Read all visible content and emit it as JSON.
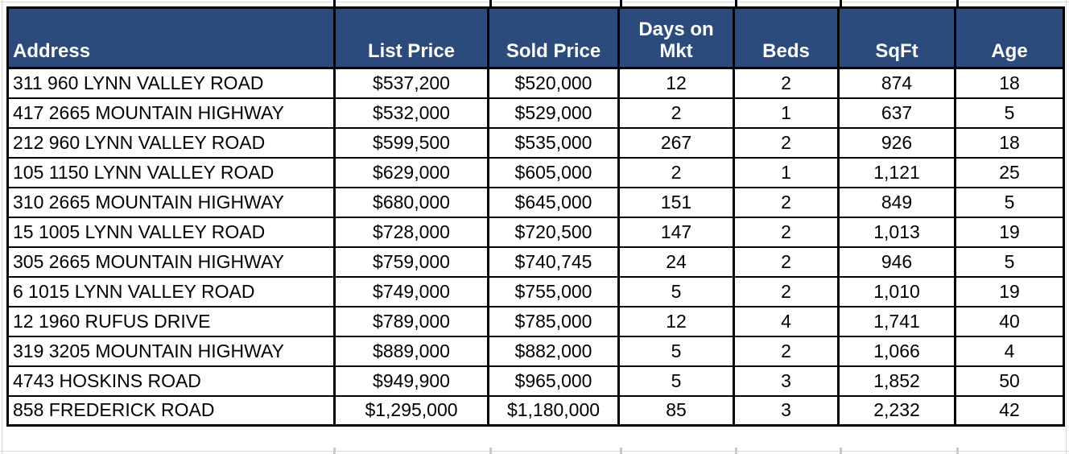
{
  "table": {
    "columns": [
      {
        "label": "Address",
        "align": "left"
      },
      {
        "label": "List Price",
        "align": "center"
      },
      {
        "label": "Sold Price",
        "align": "center"
      },
      {
        "label": "Days on Mkt",
        "align": "center"
      },
      {
        "label": "Beds",
        "align": "center"
      },
      {
        "label": "SqFt",
        "align": "center"
      },
      {
        "label": "Age",
        "align": "center"
      }
    ],
    "rows": [
      [
        "311 960 LYNN VALLEY ROAD",
        "$537,200",
        "$520,000",
        "12",
        "2",
        "874",
        "18"
      ],
      [
        "417 2665 MOUNTAIN HIGHWAY",
        "$532,000",
        "$529,000",
        "2",
        "1",
        "637",
        "5"
      ],
      [
        "212 960 LYNN VALLEY ROAD",
        "$599,500",
        "$535,000",
        "267",
        "2",
        "926",
        "18"
      ],
      [
        "105 1150 LYNN VALLEY ROAD",
        "$629,000",
        "$605,000",
        "2",
        "1",
        "1,121",
        "25"
      ],
      [
        "310 2665 MOUNTAIN HIGHWAY",
        "$680,000",
        "$645,000",
        "151",
        "2",
        "849",
        "5"
      ],
      [
        "15 1005 LYNN VALLEY ROAD",
        "$728,000",
        "$720,500",
        "147",
        "2",
        "1,013",
        "19"
      ],
      [
        "305 2665 MOUNTAIN HIGHWAY",
        "$759,000",
        "$740,745",
        "24",
        "2",
        "946",
        "5"
      ],
      [
        "6 1015 LYNN VALLEY ROAD",
        "$749,000",
        "$755,000",
        "5",
        "2",
        "1,010",
        "19"
      ],
      [
        "12 1960 RUFUS DRIVE",
        "$789,000",
        "$785,000",
        "12",
        "4",
        "1,741",
        "40"
      ],
      [
        "319 3205 MOUNTAIN HIGHWAY",
        "$889,000",
        "$882,000",
        "5",
        "2",
        "1,066",
        "4"
      ],
      [
        "4743 HOSKINS ROAD",
        "$949,900",
        "$965,000",
        "5",
        "3",
        "1,852",
        "50"
      ],
      [
        "858 FREDERICK ROAD",
        "$1,295,000",
        "$1,180,000",
        "85",
        "3",
        "2,232",
        "42"
      ]
    ],
    "colors": {
      "header_bg": "#2b4b7c",
      "header_text": "#ffffff",
      "cell_bg": "#ffffff",
      "cell_text": "#000000",
      "border": "#000000",
      "margin_gridline": "#d9d9d9"
    }
  }
}
